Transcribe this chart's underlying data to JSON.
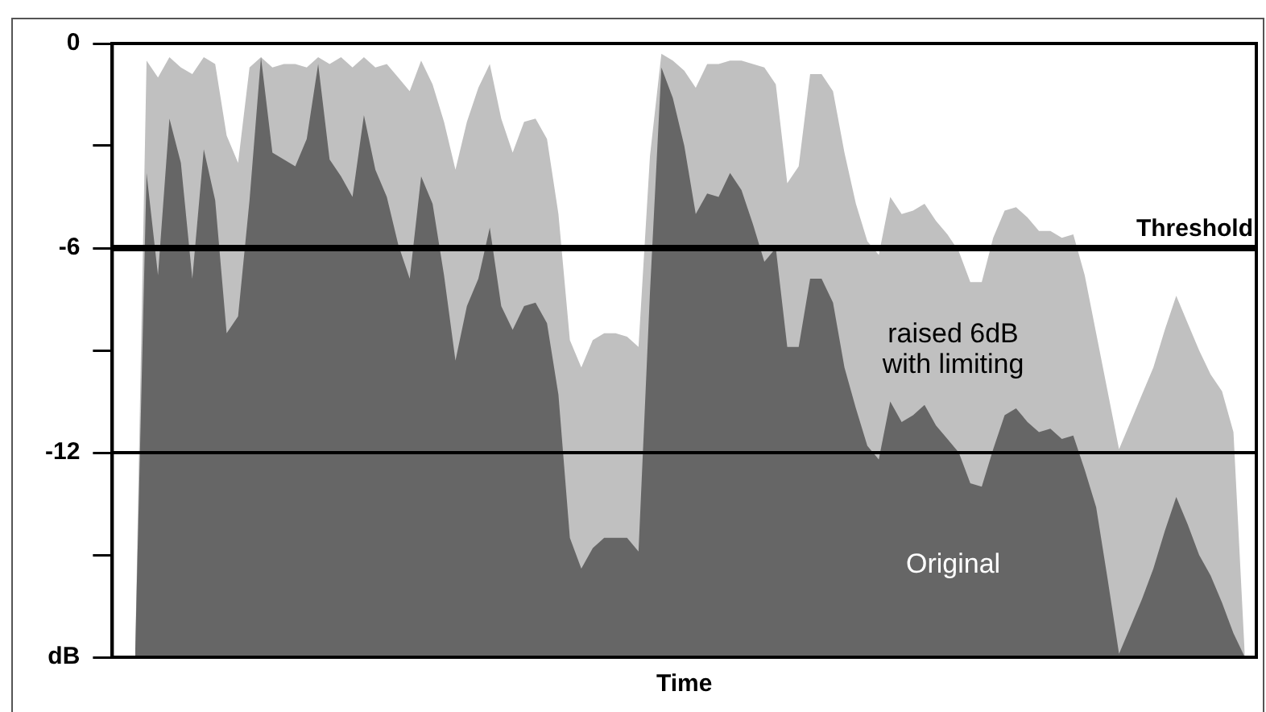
{
  "chart_data": {
    "type": "area",
    "xlabel": "Time",
    "categories": [
      null,
      null,
      null,
      null,
      null,
      null,
      null,
      null,
      null,
      null,
      null,
      null,
      null,
      null,
      null,
      null,
      null,
      null,
      null,
      null,
      null,
      null,
      null,
      null,
      null,
      null,
      null,
      null,
      null,
      null,
      null,
      null,
      null,
      null,
      null,
      null,
      null,
      null,
      null,
      null,
      null,
      null,
      null,
      null,
      null,
      null,
      null,
      null,
      null,
      null,
      null,
      null,
      null,
      null,
      null,
      null,
      null,
      null,
      null,
      null,
      null,
      null,
      null,
      null,
      null,
      null,
      null,
      null,
      null,
      null,
      null,
      null,
      null,
      null,
      null,
      null,
      null,
      null,
      null,
      null,
      null,
      null,
      null,
      null,
      null,
      null,
      null,
      null,
      null,
      null,
      null,
      null,
      null,
      null,
      null,
      null,
      null,
      null,
      null,
      null,
      null
    ],
    "ylim": [
      -18,
      0
    ],
    "yticks": [
      0,
      {
        "value": -3,
        "label": null
      },
      -6,
      {
        "value": -9,
        "label": null
      },
      -12,
      {
        "value": -15,
        "label": null
      },
      {
        "value": -18,
        "label": "dB"
      }
    ],
    "tick_labels": "y",
    "grid": false,
    "legend": false,
    "ref_lines": [
      {
        "axis": "y",
        "value": -6,
        "label": "Threshold",
        "color": "#000000"
      },
      {
        "axis": "y",
        "value": -12,
        "color": "#000000"
      }
    ],
    "series": [
      {
        "name": "raised 6dB with limiting",
        "color": "#c0c0c0",
        "values": [
          null,
          null,
          -18,
          -0.5,
          -1.0,
          -0.4,
          -0.7,
          -0.9,
          -0.4,
          -0.6,
          -2.7,
          -3.5,
          -0.7,
          -0.4,
          -0.7,
          -0.6,
          -0.6,
          -0.7,
          -0.4,
          -0.6,
          -0.4,
          -0.7,
          -0.4,
          -0.7,
          -0.6,
          -1.0,
          -1.4,
          -0.5,
          -1.2,
          -2.3,
          -3.7,
          -2.3,
          -1.3,
          -0.6,
          -2.2,
          -3.2,
          -2.3,
          -2.2,
          -2.8,
          -5.0,
          -8.7,
          -9.5,
          -8.7,
          -8.5,
          -8.5,
          -8.6,
          -8.9,
          -3.3,
          -0.3,
          -0.5,
          -0.8,
          -1.3,
          -0.6,
          -0.6,
          -0.5,
          -0.5,
          -0.6,
          -0.7,
          -1.2,
          -4.1,
          -3.6,
          -0.9,
          -0.9,
          -1.4,
          -3.2,
          -4.7,
          -5.8,
          -6.2,
          -4.5,
          -5.0,
          -4.9,
          -4.7,
          -5.2,
          -5.6,
          -6.1,
          -7.0,
          -7.0,
          -5.7,
          -4.9,
          -4.8,
          -5.1,
          -5.5,
          -5.5,
          -5.7,
          -5.6,
          -6.8,
          -8.5,
          -10.2,
          -11.9,
          -11.1,
          -10.3,
          -9.5,
          -8.4,
          -7.4,
          -8.2,
          -9.0,
          -9.7,
          -10.2,
          -11.4,
          -18,
          null
        ]
      },
      {
        "name": "Original",
        "color": "#666666",
        "values": [
          null,
          null,
          -18,
          -3.8,
          -6.8,
          -2.2,
          -3.5,
          -6.9,
          -3.1,
          -4.6,
          -8.5,
          -8.0,
          -4.6,
          -0.4,
          -3.2,
          -3.4,
          -3.6,
          -2.8,
          -0.6,
          -3.4,
          -3.9,
          -4.5,
          -2.1,
          -3.7,
          -4.5,
          -5.9,
          -6.9,
          -3.9,
          -4.7,
          -6.8,
          -9.3,
          -7.7,
          -6.9,
          -5.4,
          -7.7,
          -8.4,
          -7.7,
          -7.6,
          -8.2,
          -10.3,
          -14.5,
          -15.4,
          -14.8,
          -14.5,
          -14.5,
          -14.5,
          -14.9,
          -7.3,
          -0.7,
          -1.6,
          -3.0,
          -5.0,
          -4.4,
          -4.5,
          -3.8,
          -4.3,
          -5.3,
          -6.4,
          -6.0,
          -8.9,
          -8.9,
          -6.9,
          -6.9,
          -7.6,
          -9.5,
          -10.7,
          -11.8,
          -12.2,
          -10.5,
          -11.1,
          -10.9,
          -10.6,
          -11.2,
          -11.6,
          -12.0,
          -12.9,
          -13.0,
          -11.9,
          -10.9,
          -10.7,
          -11.1,
          -11.4,
          -11.3,
          -11.6,
          -11.5,
          -12.5,
          -13.6,
          -15.7,
          -17.9,
          -17.1,
          -16.3,
          -15.4,
          -14.3,
          -13.3,
          -14.1,
          -15.0,
          -15.6,
          -16.4,
          -17.3,
          -18,
          null
        ]
      }
    ]
  }
}
